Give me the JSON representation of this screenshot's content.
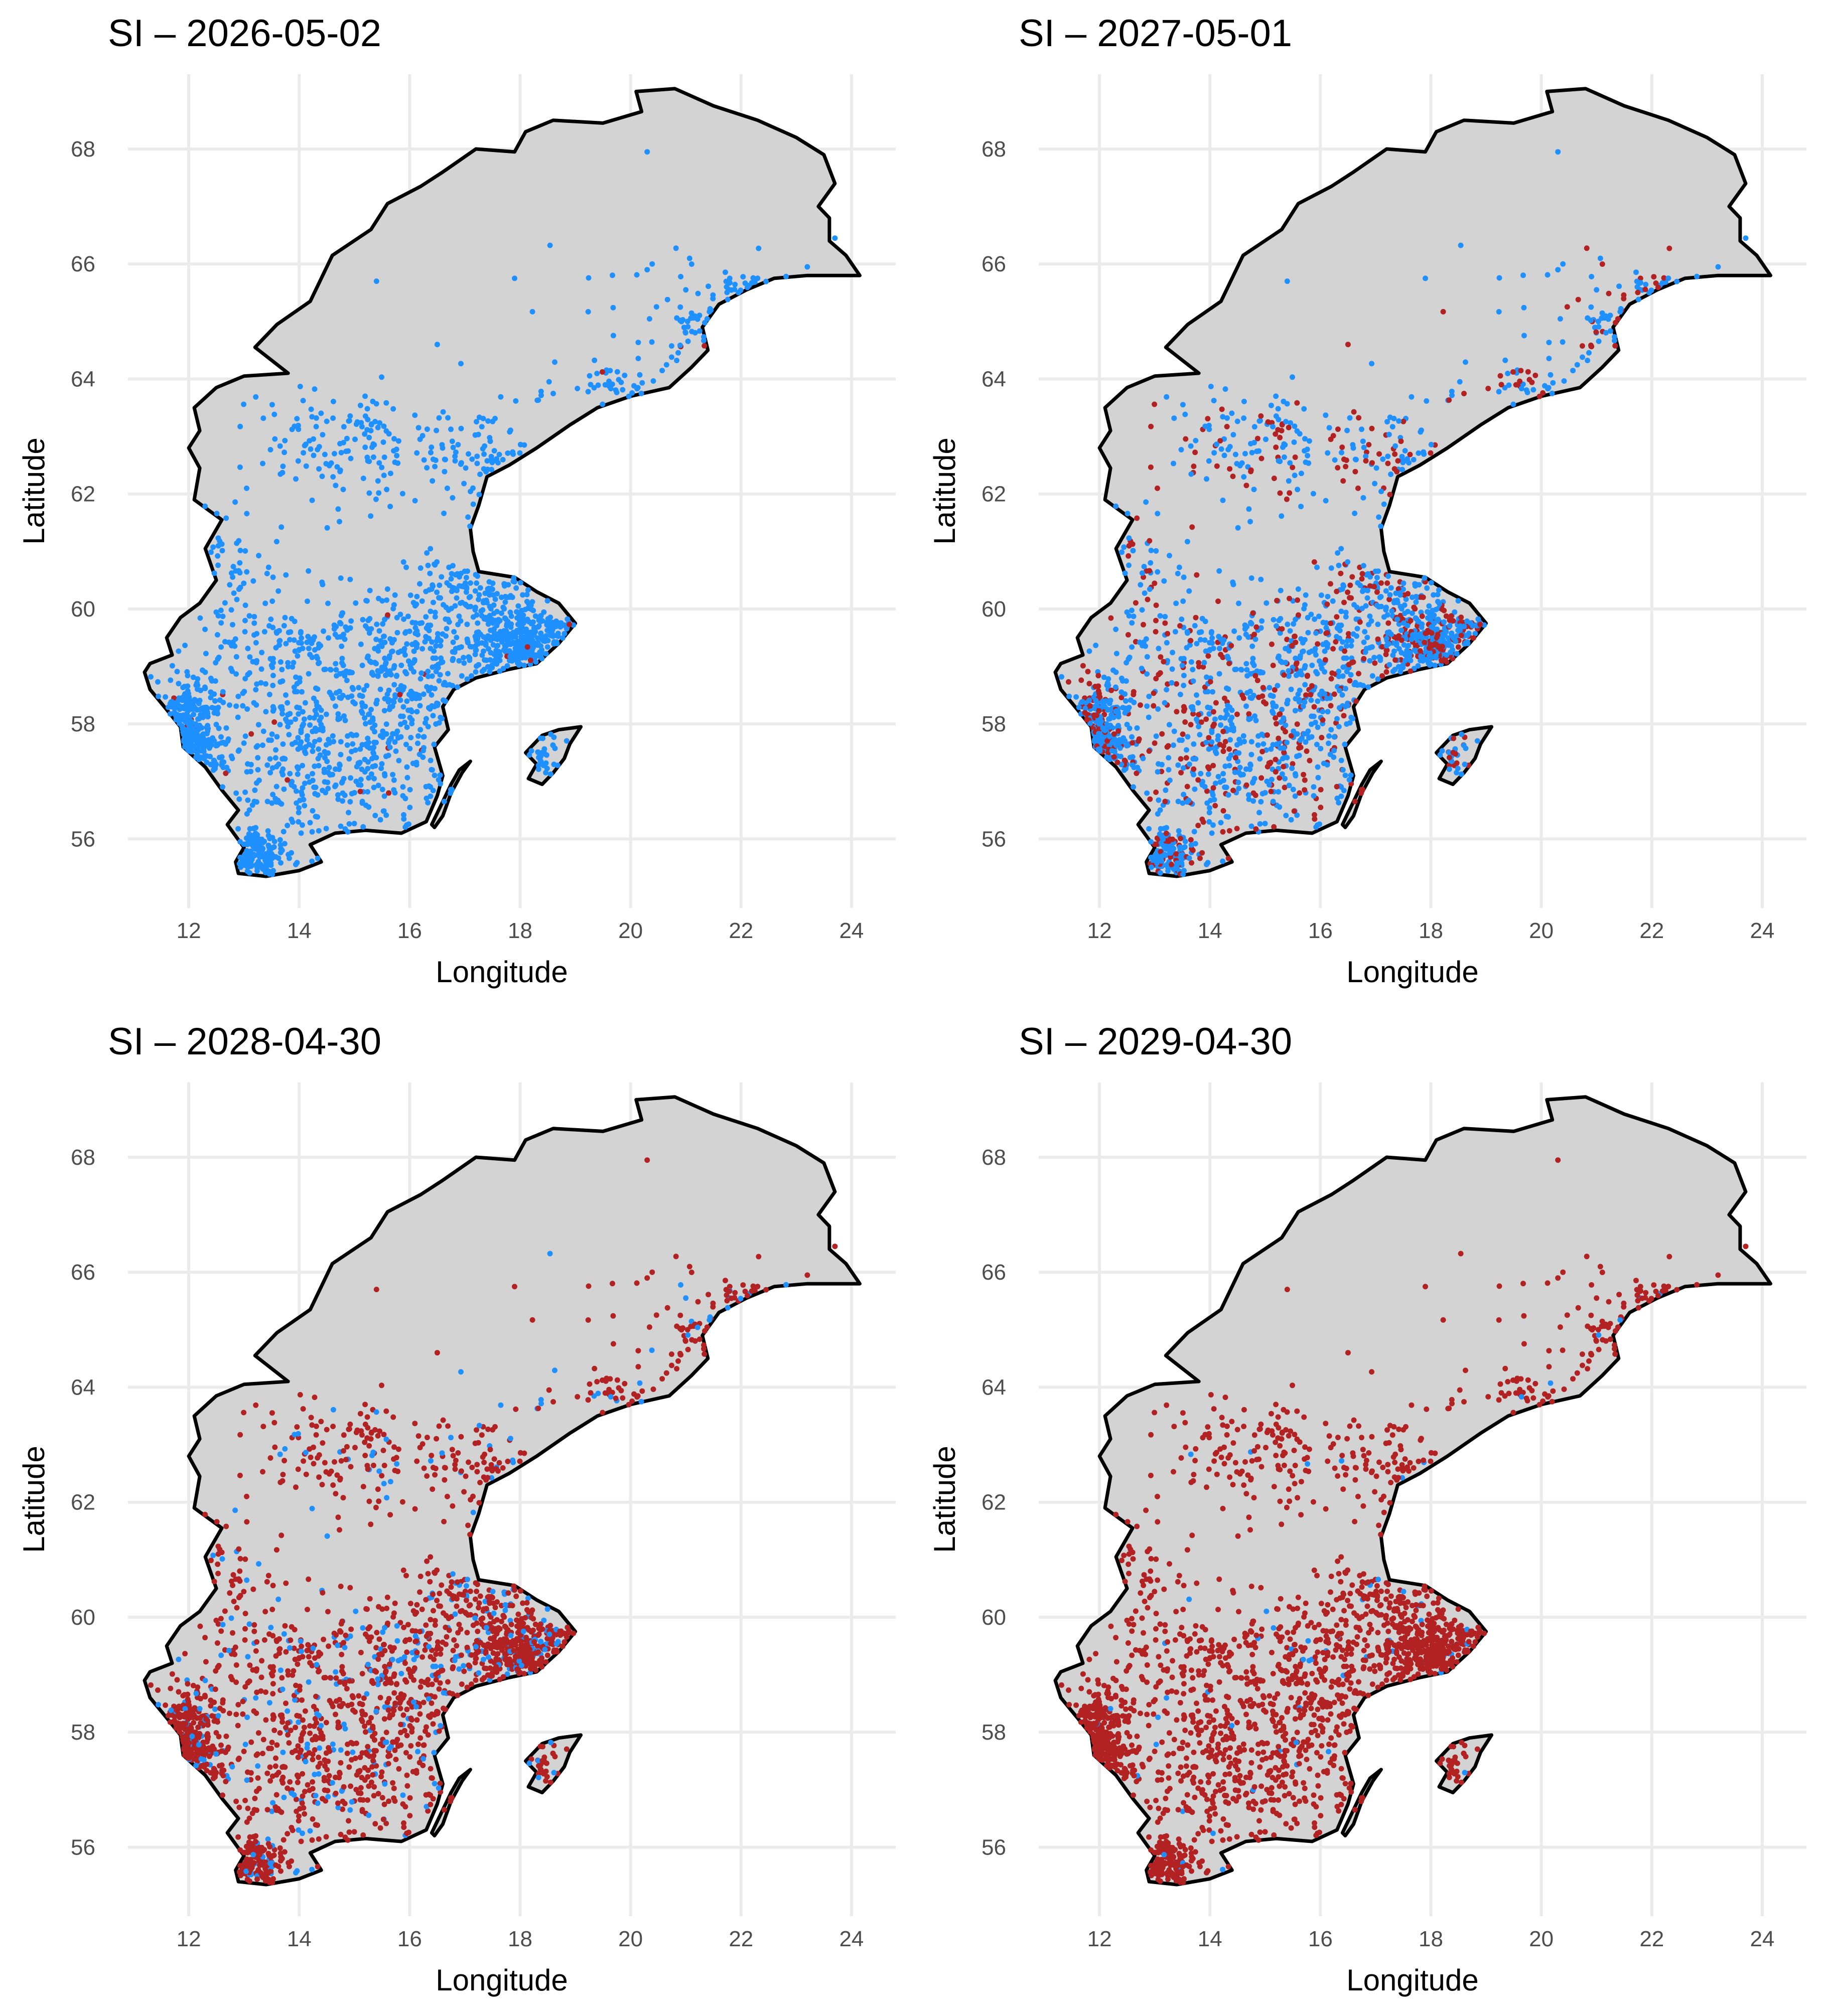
{
  "figure": {
    "colors": {
      "land": "#d3d3d3",
      "outline": "#000000",
      "grid": "#ebebeb",
      "healthy": "#1e90ff",
      "affected": "#b22222"
    },
    "xlabel": "Longitude",
    "ylabel": "Latitude",
    "x_ticks": [
      "12",
      "14",
      "16",
      "18",
      "20",
      "22",
      "24"
    ],
    "y_ticks": [
      "56",
      "58",
      "60",
      "62",
      "64",
      "66",
      "68"
    ]
  },
  "chart_data": [
    {
      "type": "scatter",
      "title": "SI – 2026-05-02",
      "xlabel": "Longitude",
      "ylabel": "Latitude",
      "xlim": [
        10.9,
        24.8
      ],
      "ylim": [
        54.8,
        69.3
      ],
      "grid": true,
      "legend": "none",
      "series": [
        {
          "color": "#b22222",
          "share": 0.01
        },
        {
          "color": "#1e90ff",
          "share": 0.99
        }
      ]
    },
    {
      "type": "scatter",
      "title": "SI – 2027-05-01",
      "xlabel": "Longitude",
      "ylabel": "Latitude",
      "xlim": [
        10.9,
        24.8
      ],
      "ylim": [
        54.8,
        69.3
      ],
      "grid": true,
      "legend": "none",
      "series": [
        {
          "color": "#b22222",
          "share": 0.3
        },
        {
          "color": "#1e90ff",
          "share": 0.7
        }
      ]
    },
    {
      "type": "scatter",
      "title": "SI – 2028-04-30",
      "xlabel": "Longitude",
      "ylabel": "Latitude",
      "xlim": [
        10.9,
        24.8
      ],
      "ylim": [
        54.8,
        69.3
      ],
      "grid": true,
      "legend": "none",
      "series": [
        {
          "color": "#b22222",
          "share": 0.84
        },
        {
          "color": "#1e90ff",
          "share": 0.16
        }
      ]
    },
    {
      "type": "scatter",
      "title": "SI – 2029-04-30",
      "xlabel": "Longitude",
      "ylabel": "Latitude",
      "xlim": [
        10.9,
        24.8
      ],
      "ylim": [
        54.8,
        69.3
      ],
      "grid": true,
      "legend": "none",
      "series": [
        {
          "color": "#b22222",
          "share": 0.97
        },
        {
          "color": "#1e90ff",
          "share": 0.03
        }
      ]
    }
  ]
}
